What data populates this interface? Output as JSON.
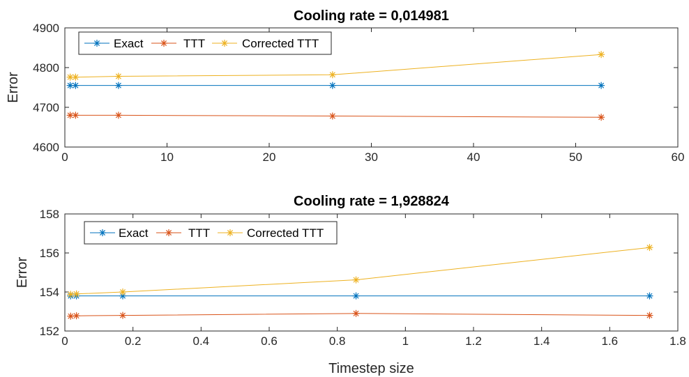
{
  "chart_data": [
    {
      "type": "line",
      "title": "Cooling rate = 0,014981",
      "xlabel": "",
      "ylabel": "Error",
      "xlim": [
        0,
        60
      ],
      "ylim": [
        4600,
        4900
      ],
      "xticks": [
        0,
        10,
        20,
        30,
        40,
        50,
        60
      ],
      "yticks": [
        4600,
        4700,
        4800,
        4900
      ],
      "xtick_labels": [
        "0",
        "10",
        "20",
        "30",
        "40",
        "50",
        "60"
      ],
      "ytick_labels": [
        "4600",
        "4700",
        "4800",
        "4900"
      ],
      "grid": false,
      "legend_position": "top-left",
      "x": [
        0.52,
        1.05,
        5.25,
        26.2,
        52.5
      ],
      "series": [
        {
          "name": "Exact",
          "color": "#0072BD",
          "marker": "asterisk",
          "values": [
            4755,
            4755,
            4755,
            4755,
            4755
          ]
        },
        {
          "name": "TTT",
          "color": "#D95319",
          "marker": "asterisk",
          "values": [
            4680,
            4680,
            4680,
            4678,
            4675
          ]
        },
        {
          "name": "Corrected TTT",
          "color": "#EDB120",
          "marker": "asterisk",
          "values": [
            4776,
            4776,
            4778,
            4782,
            4833
          ]
        }
      ]
    },
    {
      "type": "line",
      "title": "Cooling rate = 1,928824",
      "xlabel": "Timestep size",
      "ylabel": "Error",
      "xlim": [
        0,
        1.8
      ],
      "ylim": [
        152,
        158
      ],
      "xticks": [
        0,
        0.2,
        0.4,
        0.6,
        0.8,
        1.0,
        1.2,
        1.4,
        1.6,
        1.8
      ],
      "yticks": [
        152,
        154,
        156,
        158
      ],
      "xtick_labels": [
        "0",
        "0.2",
        "0.4",
        "0.6",
        "0.8",
        "1",
        "1.2",
        "1.4",
        "1.6",
        "1.8"
      ],
      "ytick_labels": [
        "152",
        "154",
        "156",
        "158"
      ],
      "grid": false,
      "legend_position": "top-left",
      "x": [
        0.017,
        0.034,
        0.17,
        0.855,
        1.717
      ],
      "series": [
        {
          "name": "Exact",
          "color": "#0072BD",
          "marker": "asterisk",
          "values": [
            153.8,
            153.8,
            153.8,
            153.8,
            153.8
          ]
        },
        {
          "name": "TTT",
          "color": "#D95319",
          "marker": "asterisk",
          "values": [
            152.76,
            152.78,
            152.8,
            152.9,
            152.8
          ]
        },
        {
          "name": "Corrected TTT",
          "color": "#EDB120",
          "marker": "asterisk",
          "values": [
            153.88,
            153.9,
            154.0,
            154.62,
            156.28
          ]
        }
      ]
    }
  ]
}
